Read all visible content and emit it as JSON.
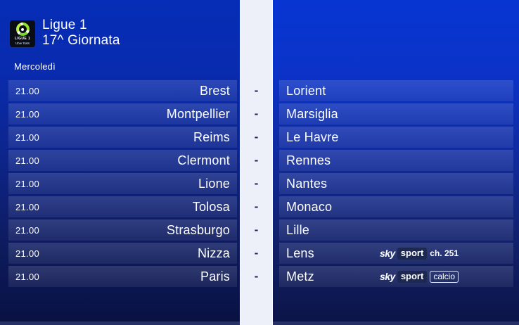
{
  "header": {
    "competition": "Ligue 1",
    "round": "17^ Giornata",
    "day": "Mercoledì",
    "logo_line1": "LIGUE 1",
    "logo_line2": "Uber Eats"
  },
  "separator": "-",
  "matches": [
    {
      "time": "21.00",
      "home": "Brest",
      "away": "Lorient",
      "badge": null
    },
    {
      "time": "21.00",
      "home": "Montpellier",
      "away": "Marsiglia",
      "badge": null
    },
    {
      "time": "21.00",
      "home": "Reims",
      "away": "Le Havre",
      "badge": null
    },
    {
      "time": "21.00",
      "home": "Clermont",
      "away": "Rennes",
      "badge": null
    },
    {
      "time": "21.00",
      "home": "Lione",
      "away": "Nantes",
      "badge": null
    },
    {
      "time": "21.00",
      "home": "Tolosa",
      "away": "Monaco",
      "badge": null
    },
    {
      "time": "21.00",
      "home": "Strasburgo",
      "away": "Lille",
      "badge": null
    },
    {
      "time": "21.00",
      "home": "Nizza",
      "away": "Lens",
      "badge": {
        "sky": "sky",
        "sport": "sport",
        "extra": "ch. 251",
        "extra_boxed": false
      }
    },
    {
      "time": "21.00",
      "home": "Paris",
      "away": "Metz",
      "badge": {
        "sky": "sky",
        "sport": "sport",
        "extra": "calcio",
        "extra_boxed": true
      }
    }
  ],
  "colors": {
    "bg-top": "#0735d2",
    "bg-mid": "#102b9e",
    "bg-bottom": "#0c1446",
    "strip": "#eef0f9",
    "dash": "#1c2150",
    "sport-box": "#1d2850",
    "logo-green": "#8fe32b",
    "bottom-band": "#273067"
  }
}
